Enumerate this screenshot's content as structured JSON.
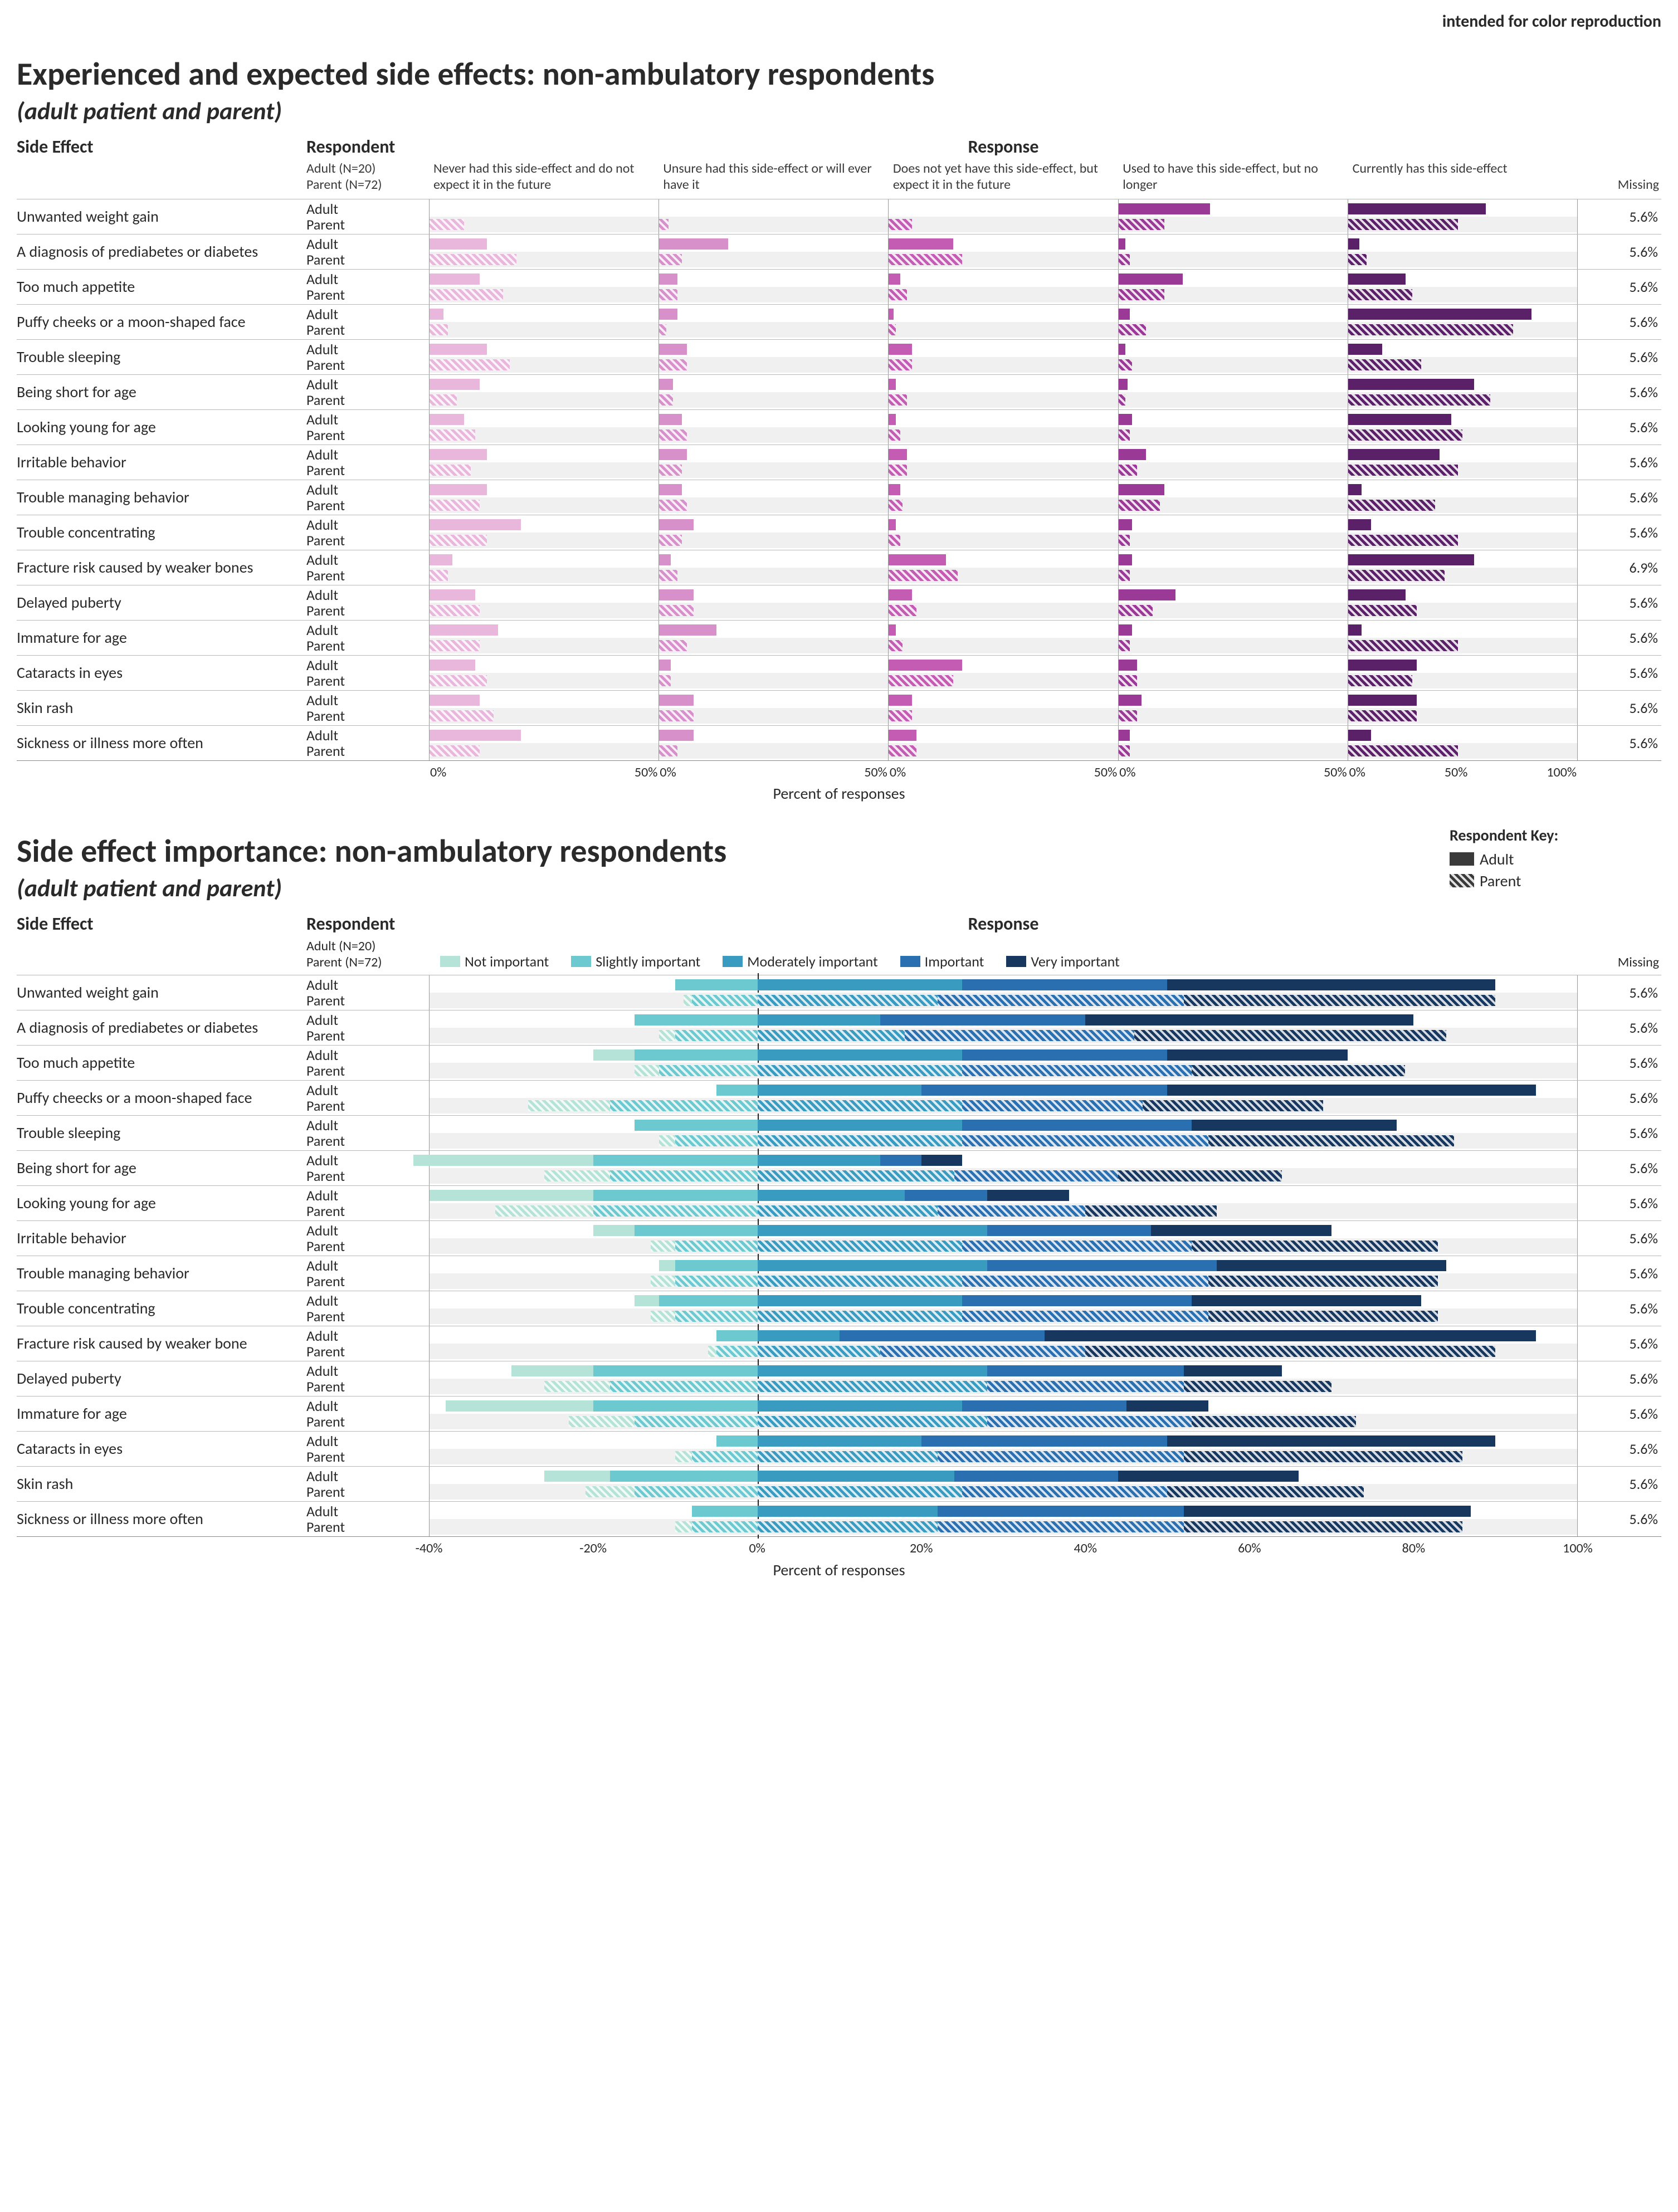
{
  "corner_note": "intended for color reproduction",
  "respondent_key": {
    "title": "Respondent Key:",
    "adult": "Adult",
    "parent": "Parent",
    "swatch_color": "#3a3a3a"
  },
  "chart1": {
    "title": "Experienced and expected side effects: non-ambulatory respondents",
    "subtitle": "(adult patient and parent)",
    "col_side_effect": "Side Effect",
    "col_respondent": "Respondent",
    "col_response": "Response",
    "col_missing": "Missing",
    "n_note_adult": "Adult (N=20)",
    "n_note_parent": "Parent (N=72)",
    "panel_max": 100,
    "panel_labels": [
      "Never had this side-effect and do not expect it in the future",
      "Unsure had this side-effect or will ever have it",
      "Does not yet have this side-effect, but expect it in the future",
      "Used to have this side-effect, but no longer",
      "Currently has this side-effect"
    ],
    "panel_colors": [
      "#e9b6dc",
      "#d890cb",
      "#c35cb2",
      "#9a3a96",
      "#5b2168"
    ],
    "x_ticks": [
      "0%",
      "50%"
    ],
    "x_ticks_last": [
      "0%",
      "50%",
      "100%"
    ],
    "x_axis_label": "Percent of responses",
    "adult_label": "Adult",
    "parent_label": "Parent",
    "rows": [
      {
        "label": "Unwanted weight gain",
        "missing": "5.6%",
        "adult": [
          0,
          0,
          0,
          40,
          60
        ],
        "parent": [
          15,
          4,
          10,
          20,
          48
        ]
      },
      {
        "label": "A diagnosis of prediabetes or diabetes",
        "missing": "5.6%",
        "adult": [
          25,
          30,
          28,
          3,
          5
        ],
        "parent": [
          38,
          10,
          32,
          5,
          8
        ]
      },
      {
        "label": "Too much appetite",
        "missing": "5.6%",
        "adult": [
          22,
          8,
          5,
          28,
          25
        ],
        "parent": [
          32,
          8,
          8,
          20,
          28
        ]
      },
      {
        "label": "Puffy cheeks or a moon-shaped face",
        "missing": "5.6%",
        "adult": [
          6,
          8,
          2,
          5,
          80
        ],
        "parent": [
          8,
          3,
          3,
          12,
          72
        ]
      },
      {
        "label": "Trouble sleeping",
        "missing": "5.6%",
        "adult": [
          25,
          12,
          10,
          3,
          15
        ],
        "parent": [
          35,
          12,
          10,
          6,
          32
        ]
      },
      {
        "label": "Being short for age",
        "missing": "5.6%",
        "adult": [
          22,
          6,
          3,
          4,
          55
        ],
        "parent": [
          12,
          6,
          8,
          3,
          62
        ]
      },
      {
        "label": "Looking young for age",
        "missing": "5.6%",
        "adult": [
          15,
          10,
          3,
          6,
          45
        ],
        "parent": [
          20,
          12,
          5,
          5,
          50
        ]
      },
      {
        "label": "Irritable behavior",
        "missing": "5.6%",
        "adult": [
          25,
          12,
          8,
          12,
          40
        ],
        "parent": [
          18,
          10,
          8,
          8,
          48
        ]
      },
      {
        "label": "Trouble managing behavior",
        "missing": "5.6%",
        "adult": [
          25,
          10,
          5,
          20,
          6
        ],
        "parent": [
          22,
          12,
          6,
          18,
          38
        ]
      },
      {
        "label": "Trouble concentrating",
        "missing": "5.6%",
        "adult": [
          40,
          15,
          3,
          6,
          10
        ],
        "parent": [
          25,
          10,
          5,
          5,
          48
        ]
      },
      {
        "label": "Fracture risk caused by weaker bones",
        "missing": "6.9%",
        "adult": [
          10,
          5,
          25,
          6,
          55
        ],
        "parent": [
          8,
          8,
          30,
          5,
          42
        ]
      },
      {
        "label": "Delayed puberty",
        "missing": "5.6%",
        "adult": [
          20,
          15,
          10,
          25,
          25
        ],
        "parent": [
          22,
          15,
          12,
          15,
          30
        ]
      },
      {
        "label": "Immature for age",
        "missing": "5.6%",
        "adult": [
          30,
          25,
          3,
          6,
          6
        ],
        "parent": [
          22,
          12,
          6,
          5,
          48
        ]
      },
      {
        "label": "Cataracts in eyes",
        "missing": "5.6%",
        "adult": [
          20,
          5,
          32,
          8,
          30
        ],
        "parent": [
          25,
          5,
          28,
          8,
          28
        ]
      },
      {
        "label": "Skin rash",
        "missing": "5.6%",
        "adult": [
          22,
          15,
          10,
          10,
          30
        ],
        "parent": [
          28,
          15,
          10,
          8,
          30
        ]
      },
      {
        "label": "Sickness or illness more often",
        "missing": "5.6%",
        "adult": [
          40,
          15,
          12,
          5,
          10
        ],
        "parent": [
          22,
          8,
          12,
          5,
          48
        ]
      }
    ]
  },
  "chart2": {
    "title": "Side effect importance: non-ambulatory respondents",
    "subtitle": "(adult patient and parent)",
    "col_side_effect": "Side Effect",
    "col_respondent": "Respondent",
    "col_response": "Response",
    "col_missing": "Missing",
    "n_note_adult": "Adult (N=20)",
    "n_note_parent": "Parent (N=72)",
    "legend": [
      "Not important",
      "Slightly important",
      "Moderately important",
      "Important",
      "Very important"
    ],
    "legend_colors": [
      "#b6e3d8",
      "#6cc9cf",
      "#3a9bc1",
      "#2a6fb0",
      "#17375e"
    ],
    "x_min": -40,
    "x_max": 100,
    "x_ticks": [
      "-40%",
      "-20%",
      "0%",
      "20%",
      "40%",
      "60%",
      "80%",
      "100%"
    ],
    "x_tick_vals": [
      -40,
      -20,
      0,
      20,
      40,
      60,
      80,
      100
    ],
    "x_axis_label": "Percent of responses",
    "adult_label": "Adult",
    "parent_label": "Parent",
    "rows": [
      {
        "label": "Unwanted weight gain",
        "missing": "5.6%",
        "adult": [
          0,
          10,
          25,
          25,
          40
        ],
        "parent": [
          1,
          8,
          22,
          30,
          38
        ]
      },
      {
        "label": "A diagnosis of prediabetes or diabetes",
        "missing": "5.6%",
        "adult": [
          0,
          15,
          15,
          25,
          40
        ],
        "parent": [
          2,
          10,
          18,
          28,
          38
        ]
      },
      {
        "label": "Too much appetite",
        "missing": "5.6%",
        "adult": [
          5,
          15,
          25,
          25,
          22
        ],
        "parent": [
          3,
          12,
          25,
          28,
          26
        ]
      },
      {
        "label": "Puffy cheecks or a moon-shaped face",
        "missing": "5.6%",
        "adult": [
          0,
          5,
          20,
          30,
          45
        ],
        "parent": [
          10,
          18,
          25,
          22,
          22
        ]
      },
      {
        "label": "Trouble sleeping",
        "missing": "5.6%",
        "adult": [
          0,
          15,
          25,
          28,
          25
        ],
        "parent": [
          2,
          10,
          25,
          30,
          30
        ]
      },
      {
        "label": "Being short for age",
        "missing": "5.6%",
        "adult": [
          22,
          20,
          15,
          5,
          5
        ],
        "parent": [
          8,
          18,
          24,
          20,
          20
        ]
      },
      {
        "label": "Looking young for age",
        "missing": "5.6%",
        "adult": [
          20,
          20,
          18,
          10,
          10
        ],
        "parent": [
          12,
          20,
          22,
          18,
          16
        ]
      },
      {
        "label": "Irritable behavior",
        "missing": "5.6%",
        "adult": [
          5,
          15,
          28,
          20,
          22
        ],
        "parent": [
          3,
          10,
          25,
          28,
          30
        ]
      },
      {
        "label": "Trouble managing behavior",
        "missing": "5.6%",
        "adult": [
          2,
          10,
          28,
          28,
          28
        ],
        "parent": [
          3,
          10,
          25,
          30,
          28
        ]
      },
      {
        "label": "Trouble concentrating",
        "missing": "5.6%",
        "adult": [
          3,
          12,
          25,
          28,
          28
        ],
        "parent": [
          3,
          10,
          25,
          30,
          28
        ]
      },
      {
        "label": "Fracture risk caused by weaker bone",
        "missing": "5.6%",
        "adult": [
          0,
          5,
          10,
          25,
          60
        ],
        "parent": [
          1,
          5,
          15,
          25,
          50
        ]
      },
      {
        "label": "Delayed puberty",
        "missing": "5.6%",
        "adult": [
          10,
          20,
          28,
          24,
          12
        ],
        "parent": [
          8,
          18,
          28,
          24,
          18
        ]
      },
      {
        "label": "Immature for age",
        "missing": "5.6%",
        "adult": [
          18,
          20,
          25,
          20,
          10
        ],
        "parent": [
          8,
          15,
          28,
          25,
          20
        ]
      },
      {
        "label": "Cataracts in eyes",
        "missing": "5.6%",
        "adult": [
          0,
          5,
          20,
          30,
          40
        ],
        "parent": [
          2,
          8,
          22,
          30,
          34
        ]
      },
      {
        "label": "Skin rash",
        "missing": "5.6%",
        "adult": [
          8,
          18,
          24,
          20,
          22
        ],
        "parent": [
          6,
          15,
          25,
          25,
          24
        ]
      },
      {
        "label": "Sickness or illness more often",
        "missing": "5.6%",
        "adult": [
          0,
          8,
          22,
          30,
          35
        ],
        "parent": [
          2,
          8,
          22,
          30,
          34
        ]
      }
    ]
  }
}
